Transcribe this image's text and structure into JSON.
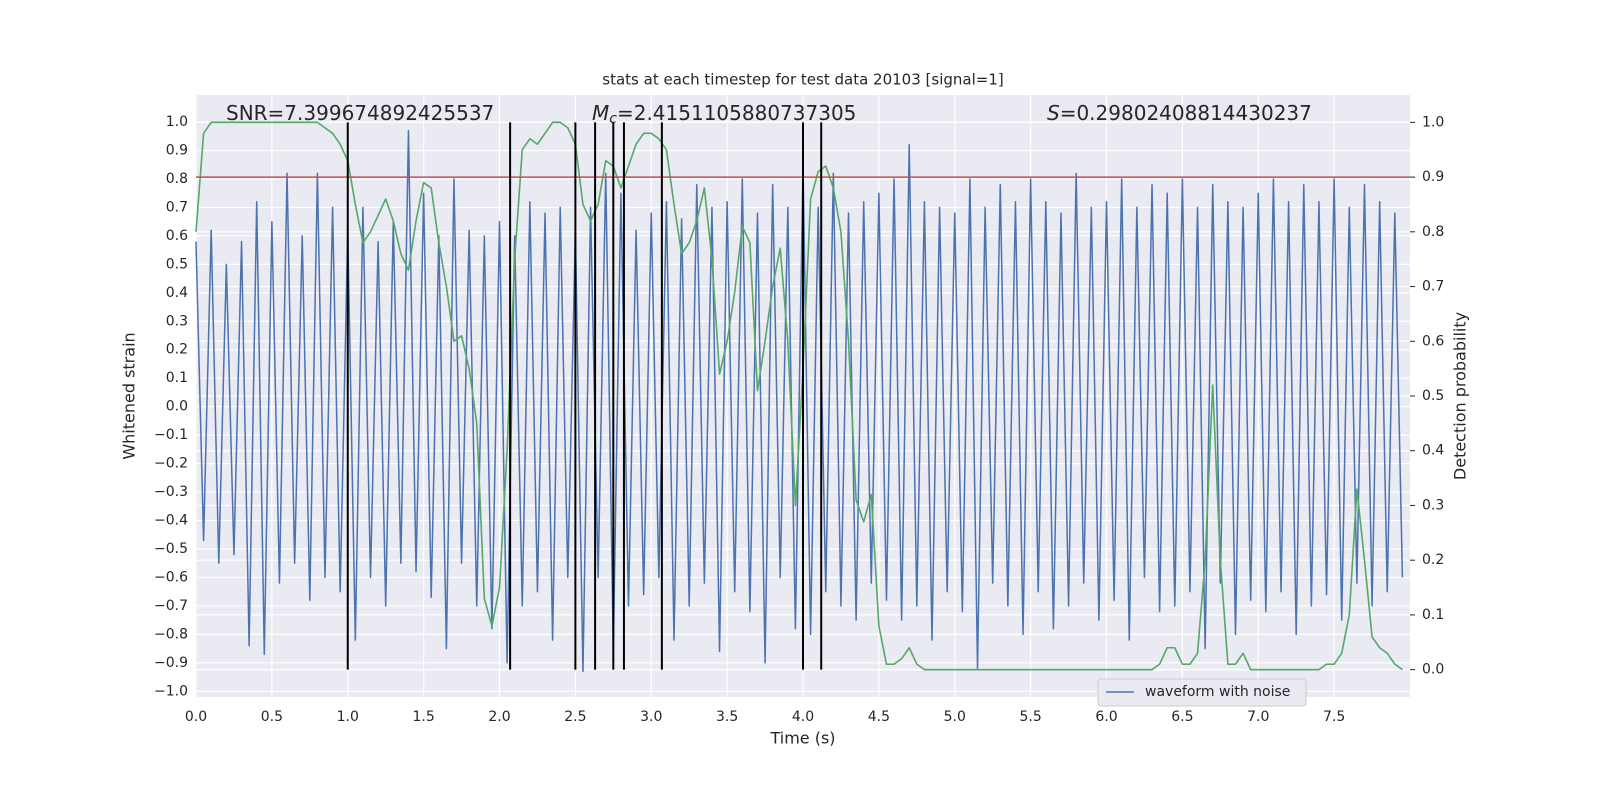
{
  "chart_data": {
    "type": "line",
    "title": "stats at each timestep for test data 20103 [signal=1]",
    "xlabel": "Time (s)",
    "ylabel": "Whitened strain",
    "y2label": "Detection probability",
    "annotations": [
      {
        "text": "SNR=7.399674892425537"
      },
      {
        "symbol": "M",
        "sub": "c",
        "text": "=2.4151105880737305"
      },
      {
        "symbol": "S",
        "text": "=0.29802408814430237"
      }
    ],
    "x": [
      0,
      0.05,
      0.1,
      0.15,
      0.2,
      0.25,
      0.3,
      0.35,
      0.4,
      0.45,
      0.5,
      0.55,
      0.6,
      0.65,
      0.7,
      0.75,
      0.8,
      0.85,
      0.9,
      0.95,
      1,
      1.05,
      1.1,
      1.15,
      1.2,
      1.25,
      1.3,
      1.35,
      1.4,
      1.45,
      1.5,
      1.55,
      1.6,
      1.65,
      1.7,
      1.75,
      1.8,
      1.85,
      1.9,
      1.95,
      2,
      2.05,
      2.1,
      2.15,
      2.2,
      2.25,
      2.3,
      2.35,
      2.4,
      2.45,
      2.5,
      2.55,
      2.6,
      2.65,
      2.7,
      2.75,
      2.8,
      2.85,
      2.9,
      2.95,
      3,
      3.05,
      3.1,
      3.15,
      3.2,
      3.25,
      3.3,
      3.35,
      3.4,
      3.45,
      3.5,
      3.55,
      3.6,
      3.65,
      3.7,
      3.75,
      3.8,
      3.85,
      3.9,
      3.95,
      4,
      4.05,
      4.1,
      4.15,
      4.2,
      4.25,
      4.3,
      4.35,
      4.4,
      4.45,
      4.5,
      4.55,
      4.6,
      4.65,
      4.7,
      4.75,
      4.8,
      4.85,
      4.9,
      4.95,
      5,
      5.05,
      5.1,
      5.15,
      5.2,
      5.25,
      5.3,
      5.35,
      5.4,
      5.45,
      5.5,
      5.55,
      5.6,
      5.65,
      5.7,
      5.75,
      5.8,
      5.85,
      5.9,
      5.95,
      6,
      6.05,
      6.1,
      6.15,
      6.2,
      6.25,
      6.3,
      6.35,
      6.4,
      6.45,
      6.5,
      6.55,
      6.6,
      6.65,
      6.7,
      6.75,
      6.8,
      6.85,
      6.9,
      6.95,
      7,
      7.05,
      7.1,
      7.15,
      7.2,
      7.25,
      7.3,
      7.35,
      7.4,
      7.45,
      7.5,
      7.55,
      7.6,
      7.65,
      7.7,
      7.75,
      7.8,
      7.85,
      7.9,
      7.95
    ],
    "series": [
      {
        "name": "waveform with noise",
        "color": "#4c72b0",
        "axis": "y",
        "values": [
          0.58,
          -0.47,
          0.62,
          -0.55,
          0.5,
          -0.52,
          0.58,
          -0.84,
          0.72,
          -0.87,
          0.65,
          -0.62,
          0.82,
          -0.55,
          0.6,
          -0.68,
          0.82,
          -0.6,
          0.7,
          -0.65,
          0.62,
          -0.82,
          0.7,
          -0.6,
          0.58,
          -0.7,
          0.65,
          -0.55,
          0.97,
          -0.58,
          0.75,
          -0.67,
          0.6,
          -0.85,
          0.8,
          -0.55,
          0.62,
          -0.7,
          0.6,
          -0.78,
          0.65,
          -0.9,
          0.6,
          -0.7,
          0.72,
          -0.65,
          0.68,
          -0.82,
          0.7,
          -0.6,
          0.62,
          -0.93,
          0.7,
          -0.6,
          0.82,
          -0.85,
          0.75,
          -0.7,
          0.62,
          -0.66,
          0.68,
          -0.6,
          0.72,
          -0.82,
          0.66,
          -0.7,
          0.78,
          -0.62,
          0.7,
          -0.86,
          0.72,
          -0.65,
          0.8,
          -0.72,
          0.68,
          -0.9,
          0.78,
          -0.6,
          0.7,
          -0.78,
          0.85,
          -0.8,
          0.7,
          -0.65,
          0.82,
          -0.7,
          0.68,
          -0.75,
          0.72,
          -0.62,
          0.75,
          -0.68,
          0.8,
          -0.75,
          0.92,
          -0.7,
          0.72,
          -0.82,
          0.7,
          -0.65,
          0.68,
          -0.72,
          0.8,
          -0.92,
          0.7,
          -0.62,
          0.78,
          -0.7,
          0.72,
          -0.8,
          0.8,
          -0.65,
          0.72,
          -0.78,
          0.68,
          -0.7,
          0.82,
          -0.62,
          0.7,
          -0.75,
          0.72,
          -0.68,
          0.8,
          -0.82,
          0.7,
          -0.6,
          0.78,
          -0.72,
          0.75,
          -0.7,
          0.8,
          -0.65,
          0.7,
          -0.85,
          0.78,
          -0.62,
          0.72,
          -0.8,
          0.7,
          -0.68,
          0.75,
          -0.72,
          0.8,
          -0.65,
          0.72,
          -0.8,
          0.78,
          -0.7,
          0.72,
          -0.66,
          0.8,
          -0.75,
          0.7,
          -0.62,
          0.78,
          -0.7,
          0.72,
          -0.65,
          0.68,
          -0.6
        ]
      },
      {
        "color": "#55a868",
        "axis": "y2",
        "values": [
          0.8,
          0.98,
          1,
          1,
          1,
          1,
          1,
          1,
          1,
          1,
          1,
          1,
          1,
          1,
          1,
          1,
          1,
          0.99,
          0.98,
          0.96,
          0.93,
          0.85,
          0.78,
          0.8,
          0.83,
          0.86,
          0.82,
          0.76,
          0.73,
          0.82,
          0.89,
          0.88,
          0.78,
          0.7,
          0.6,
          0.61,
          0.55,
          0.45,
          0.13,
          0.08,
          0.15,
          0.4,
          0.75,
          0.95,
          0.97,
          0.96,
          0.98,
          1,
          1,
          0.99,
          0.96,
          0.85,
          0.82,
          0.85,
          0.93,
          0.92,
          0.88,
          0.92,
          0.96,
          0.98,
          0.98,
          0.97,
          0.95,
          0.85,
          0.76,
          0.78,
          0.82,
          0.88,
          0.75,
          0.54,
          0.6,
          0.69,
          0.81,
          0.78,
          0.51,
          0.6,
          0.7,
          0.77,
          0.6,
          0.3,
          0.55,
          0.86,
          0.91,
          0.92,
          0.88,
          0.8,
          0.6,
          0.31,
          0.27,
          0.32,
          0.08,
          0.01,
          0.01,
          0.02,
          0.04,
          0.01,
          0,
          0,
          0,
          0,
          0,
          0,
          0,
          0,
          0,
          0,
          0,
          0,
          0,
          0,
          0,
          0,
          0,
          0,
          0,
          0,
          0,
          0,
          0,
          0,
          0,
          0,
          0,
          0,
          0,
          0,
          0,
          0.01,
          0.04,
          0.04,
          0.01,
          0.01,
          0.03,
          0.2,
          0.52,
          0.2,
          0.01,
          0.01,
          0.03,
          0,
          0,
          0,
          0,
          0,
          0,
          0,
          0,
          0,
          0,
          0.01,
          0.01,
          0.03,
          0.1,
          0.33,
          0.2,
          0.06,
          0.04,
          0.03,
          0.01,
          0
        ]
      }
    ],
    "threshold": {
      "value": 0.9,
      "axis": "y2",
      "color": "#c44e52"
    },
    "vlines": {
      "x": [
        1.0,
        2.07,
        2.5,
        2.63,
        2.75,
        2.82,
        3.07,
        4.0,
        4.12
      ],
      "color": "#000000"
    },
    "xlim": [
      0,
      8
    ],
    "ylim": [
      -1.02,
      1.095
    ],
    "y2lim": [
      -0.05,
      1.05
    ],
    "xticks": [
      {
        "value": 0,
        "label": "0.0"
      },
      0.5,
      {
        "value": 1,
        "label": "1.0"
      },
      1.5,
      {
        "value": 2,
        "label": "2.0"
      },
      2.5,
      {
        "value": 3,
        "label": "3.0"
      },
      3.5,
      {
        "value": 4,
        "label": "4.0"
      },
      4.5,
      {
        "value": 5,
        "label": "5.0"
      },
      5.5,
      {
        "value": 6,
        "label": "6.0"
      },
      6.5,
      {
        "value": 7,
        "label": "7.0"
      },
      7.5
    ],
    "yticks": [
      {
        "value": -1,
        "label": "−1.0"
      },
      {
        "value": -0.9,
        "label": "−0.9"
      },
      {
        "value": -0.8,
        "label": "−0.8"
      },
      {
        "value": -0.7,
        "label": "−0.7"
      },
      {
        "value": -0.6,
        "label": "−0.6"
      },
      {
        "value": -0.5,
        "label": "−0.5"
      },
      {
        "value": -0.4,
        "label": "−0.4"
      },
      {
        "value": -0.3,
        "label": "−0.3"
      },
      {
        "value": -0.2,
        "label": "−0.2"
      },
      {
        "value": -0.1,
        "label": "−0.1"
      },
      {
        "value": 0,
        "label": "0.0"
      },
      0.1,
      0.2,
      0.3,
      0.4,
      0.5,
      0.6,
      0.7,
      0.8,
      0.9,
      {
        "value": 1,
        "label": "1.0"
      }
    ],
    "y2ticks": [
      {
        "value": 0,
        "label": "0.0"
      },
      0.1,
      0.2,
      0.3,
      0.4,
      0.5,
      0.6,
      0.7,
      0.8,
      0.9,
      {
        "value": 1,
        "label": "1.0"
      }
    ],
    "grid": true,
    "legend": "lower right"
  }
}
